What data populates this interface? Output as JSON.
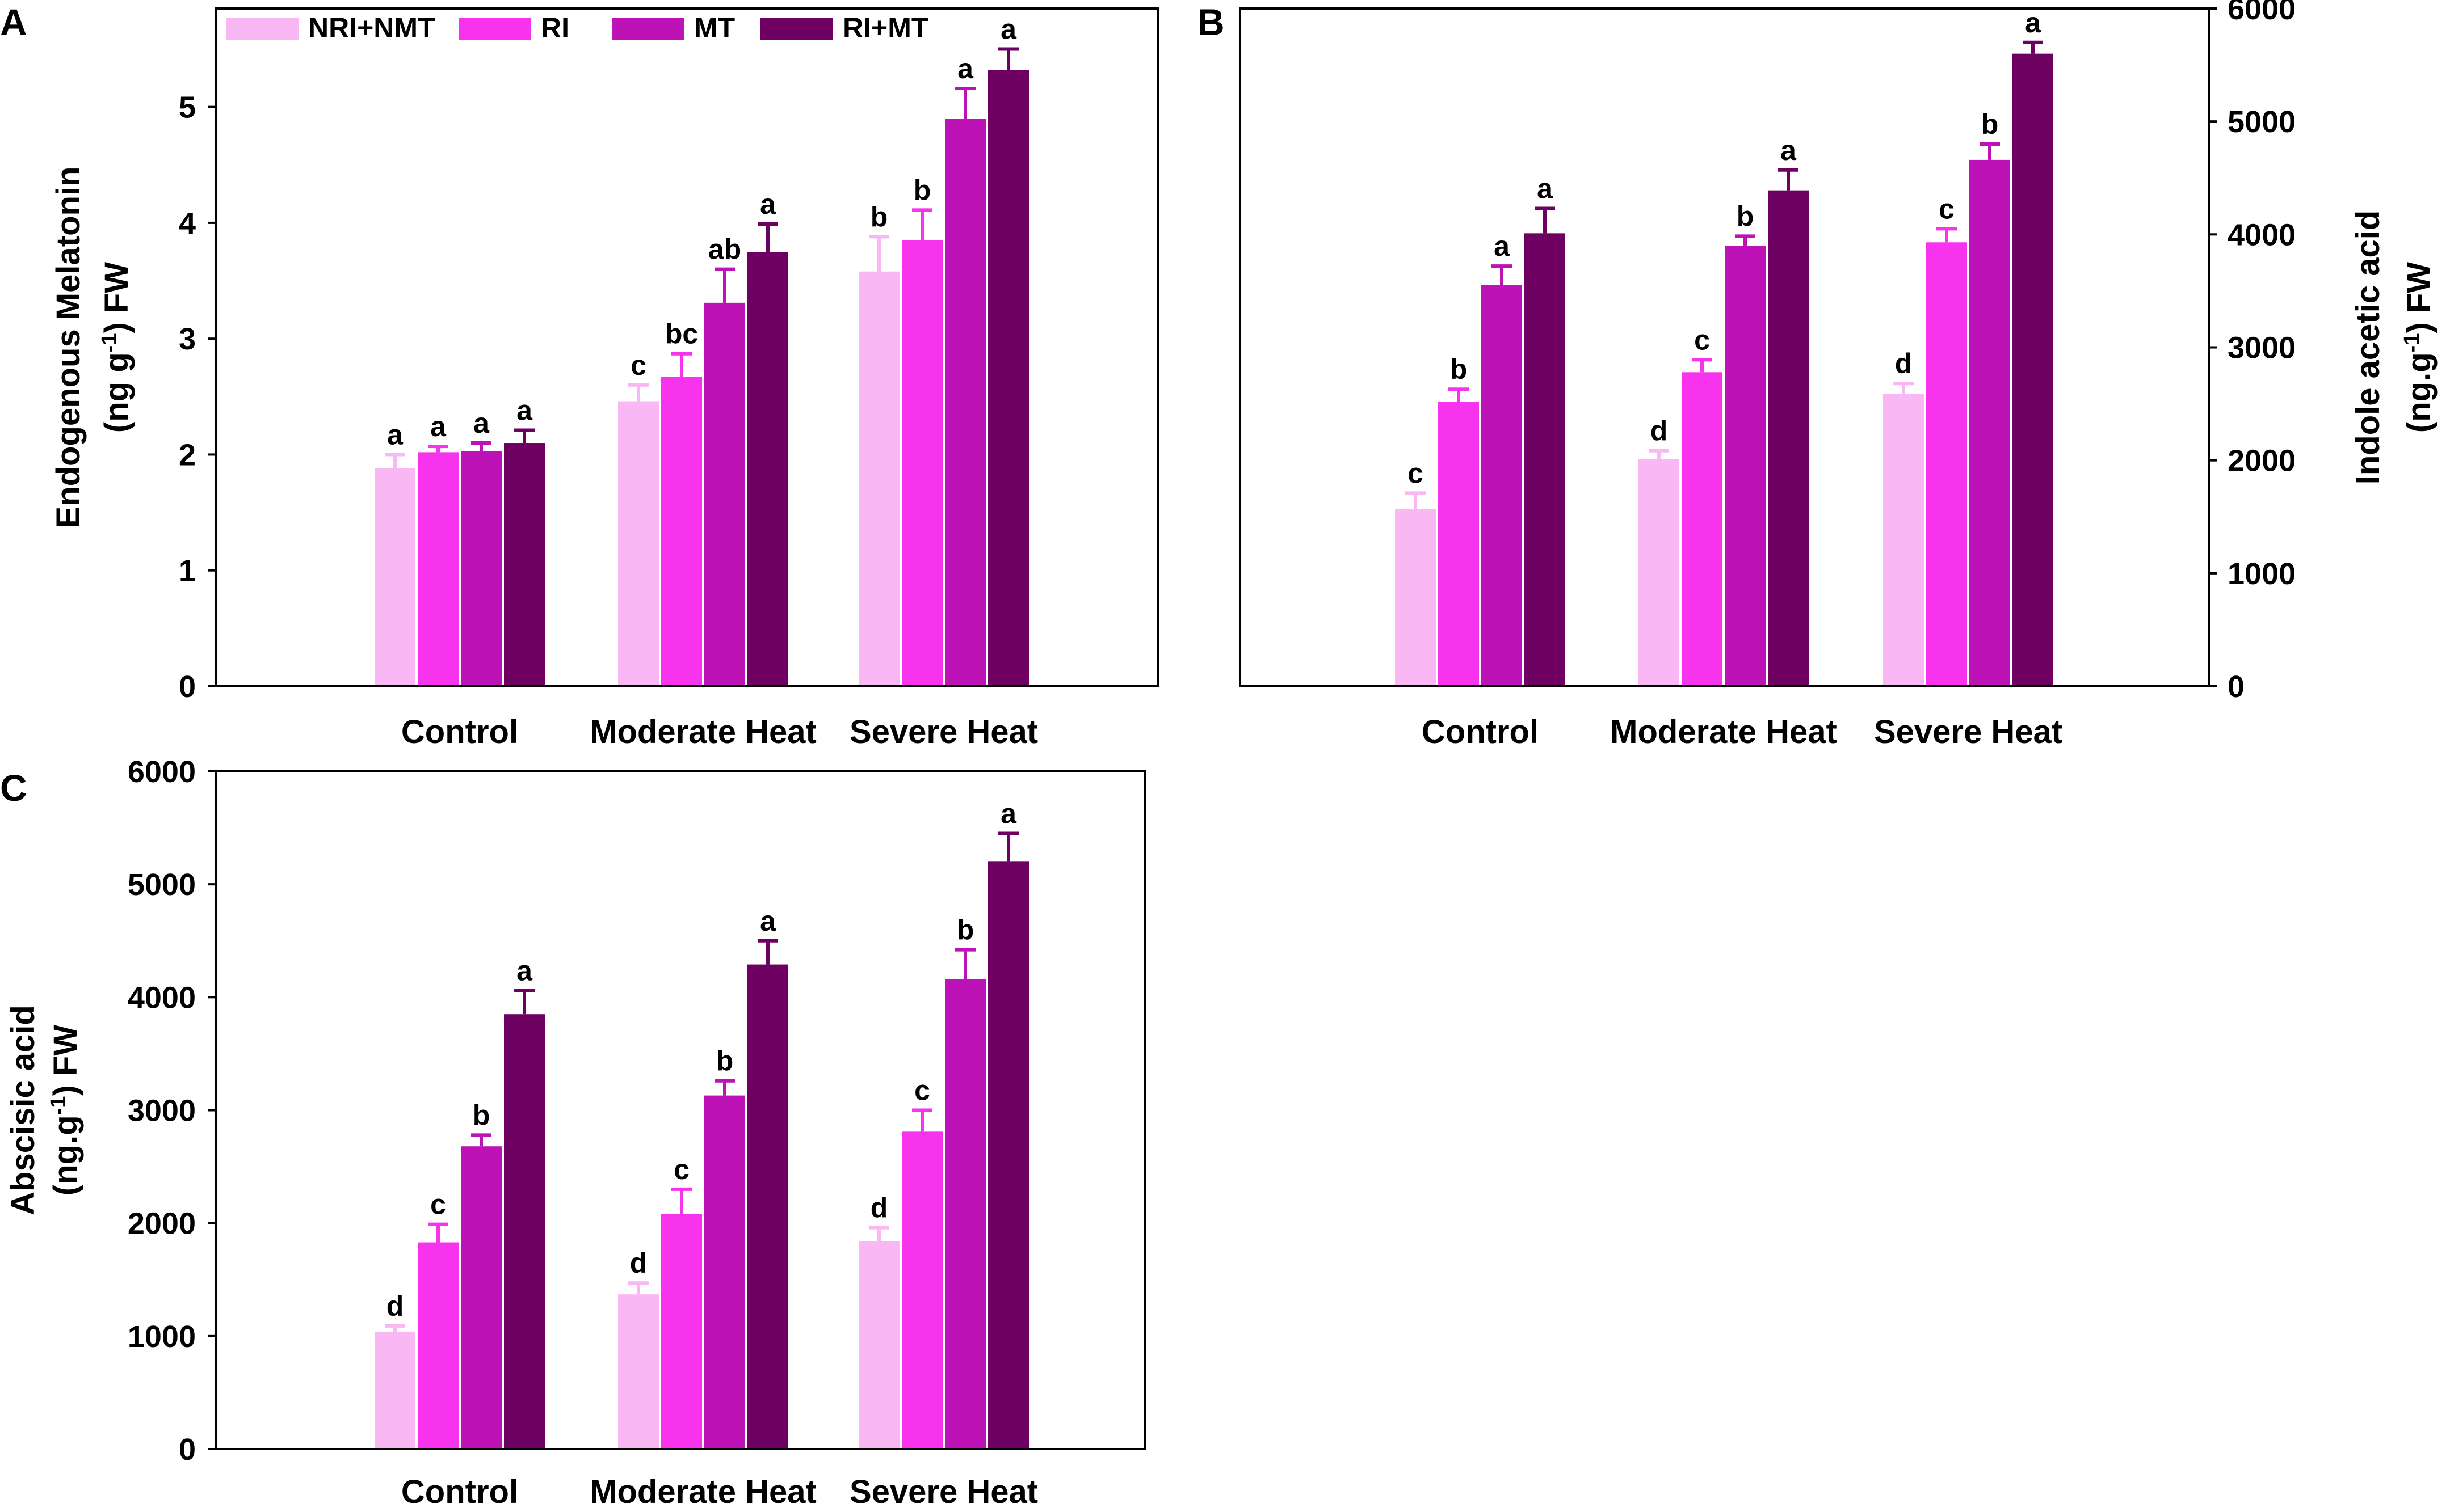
{
  "colors": {
    "NRI+NMT": "#f9b8f4",
    "RI": "#f733ed",
    "MT": "#bd12b5",
    "RI+MT": "#6e0061",
    "frame": "#000000"
  },
  "chart_data": [
    {
      "panel": "A",
      "type": "bar",
      "title": "",
      "xlabel": "",
      "ylabel_lines": [
        "Endogenous Melatonin",
        "(ng g-1) FW"
      ],
      "ylim": [
        0,
        5.85
      ],
      "yticks": [
        0,
        1,
        2,
        3,
        4,
        5
      ],
      "categories": [
        "Control",
        "Moderate Heat",
        "Severe Heat"
      ],
      "legend": {
        "position": "top-left",
        "entries": [
          "NRI+NMT",
          "RI",
          "MT",
          "RI+MT"
        ]
      },
      "series": [
        {
          "name": "NRI+NMT",
          "values": [
            1.88,
            2.46,
            3.58
          ],
          "errors": [
            0.12,
            0.14,
            0.3
          ],
          "sig": [
            "a",
            "c",
            "b"
          ]
        },
        {
          "name": "RI",
          "values": [
            2.02,
            2.67,
            3.85
          ],
          "errors": [
            0.05,
            0.2,
            0.26
          ],
          "sig": [
            "a",
            "bc",
            "b"
          ]
        },
        {
          "name": "MT",
          "values": [
            2.03,
            3.31,
            4.9
          ],
          "errors": [
            0.07,
            0.29,
            0.26
          ],
          "sig": [
            "a",
            "ab",
            "a"
          ]
        },
        {
          "name": "RI+MT",
          "values": [
            2.1,
            3.75,
            5.32
          ],
          "errors": [
            0.11,
            0.24,
            0.18
          ],
          "sig": [
            "a",
            "a",
            "a"
          ]
        }
      ]
    },
    {
      "panel": "B",
      "type": "bar",
      "title": "",
      "xlabel": "",
      "ylabel_lines": [
        "Indole acetic acid",
        "(ng.g-1) FW"
      ],
      "yaxis_side": "right",
      "ylim": [
        0,
        6000
      ],
      "yticks": [
        0,
        1000,
        2000,
        3000,
        4000,
        5000,
        6000
      ],
      "categories": [
        "Control",
        "Moderate Heat",
        "Severe Heat"
      ],
      "series": [
        {
          "name": "NRI+NMT",
          "values": [
            1570,
            2010,
            2590
          ],
          "errors": [
            140,
            75,
            90
          ],
          "sig": [
            "c",
            "d",
            "d"
          ]
        },
        {
          "name": "RI",
          "values": [
            2520,
            2780,
            3930
          ],
          "errors": [
            110,
            110,
            120
          ],
          "sig": [
            "b",
            "c",
            "c"
          ]
        },
        {
          "name": "MT",
          "values": [
            3550,
            3900,
            4660
          ],
          "errors": [
            170,
            85,
            140
          ],
          "sig": [
            "a",
            "b",
            "b"
          ]
        },
        {
          "name": "RI+MT",
          "values": [
            4010,
            4390,
            5600
          ],
          "errors": [
            220,
            180,
            100
          ],
          "sig": [
            "a",
            "a",
            "a"
          ]
        }
      ]
    },
    {
      "panel": "C",
      "type": "bar",
      "title": "",
      "xlabel": "",
      "ylabel_lines": [
        "Abscisic acid",
        "(ng.g-1) FW"
      ],
      "ylim": [
        0,
        6000
      ],
      "yticks": [
        0,
        1000,
        2000,
        3000,
        4000,
        5000,
        6000
      ],
      "categories": [
        "Control",
        "Moderate Heat",
        "Severe Heat"
      ],
      "series": [
        {
          "name": "NRI+NMT",
          "values": [
            1040,
            1370,
            1840
          ],
          "errors": [
            50,
            100,
            120
          ],
          "sig": [
            "d",
            "d",
            "d"
          ]
        },
        {
          "name": "RI",
          "values": [
            1830,
            2080,
            2810
          ],
          "errors": [
            160,
            220,
            190
          ],
          "sig": [
            "c",
            "c",
            "c"
          ]
        },
        {
          "name": "MT",
          "values": [
            2680,
            3130,
            4160
          ],
          "errors": [
            100,
            130,
            260
          ],
          "sig": [
            "b",
            "b",
            "b"
          ]
        },
        {
          "name": "RI+MT",
          "values": [
            3850,
            4290,
            5200
          ],
          "errors": [
            210,
            210,
            250
          ],
          "sig": [
            "a",
            "a",
            "a"
          ]
        }
      ]
    }
  ]
}
